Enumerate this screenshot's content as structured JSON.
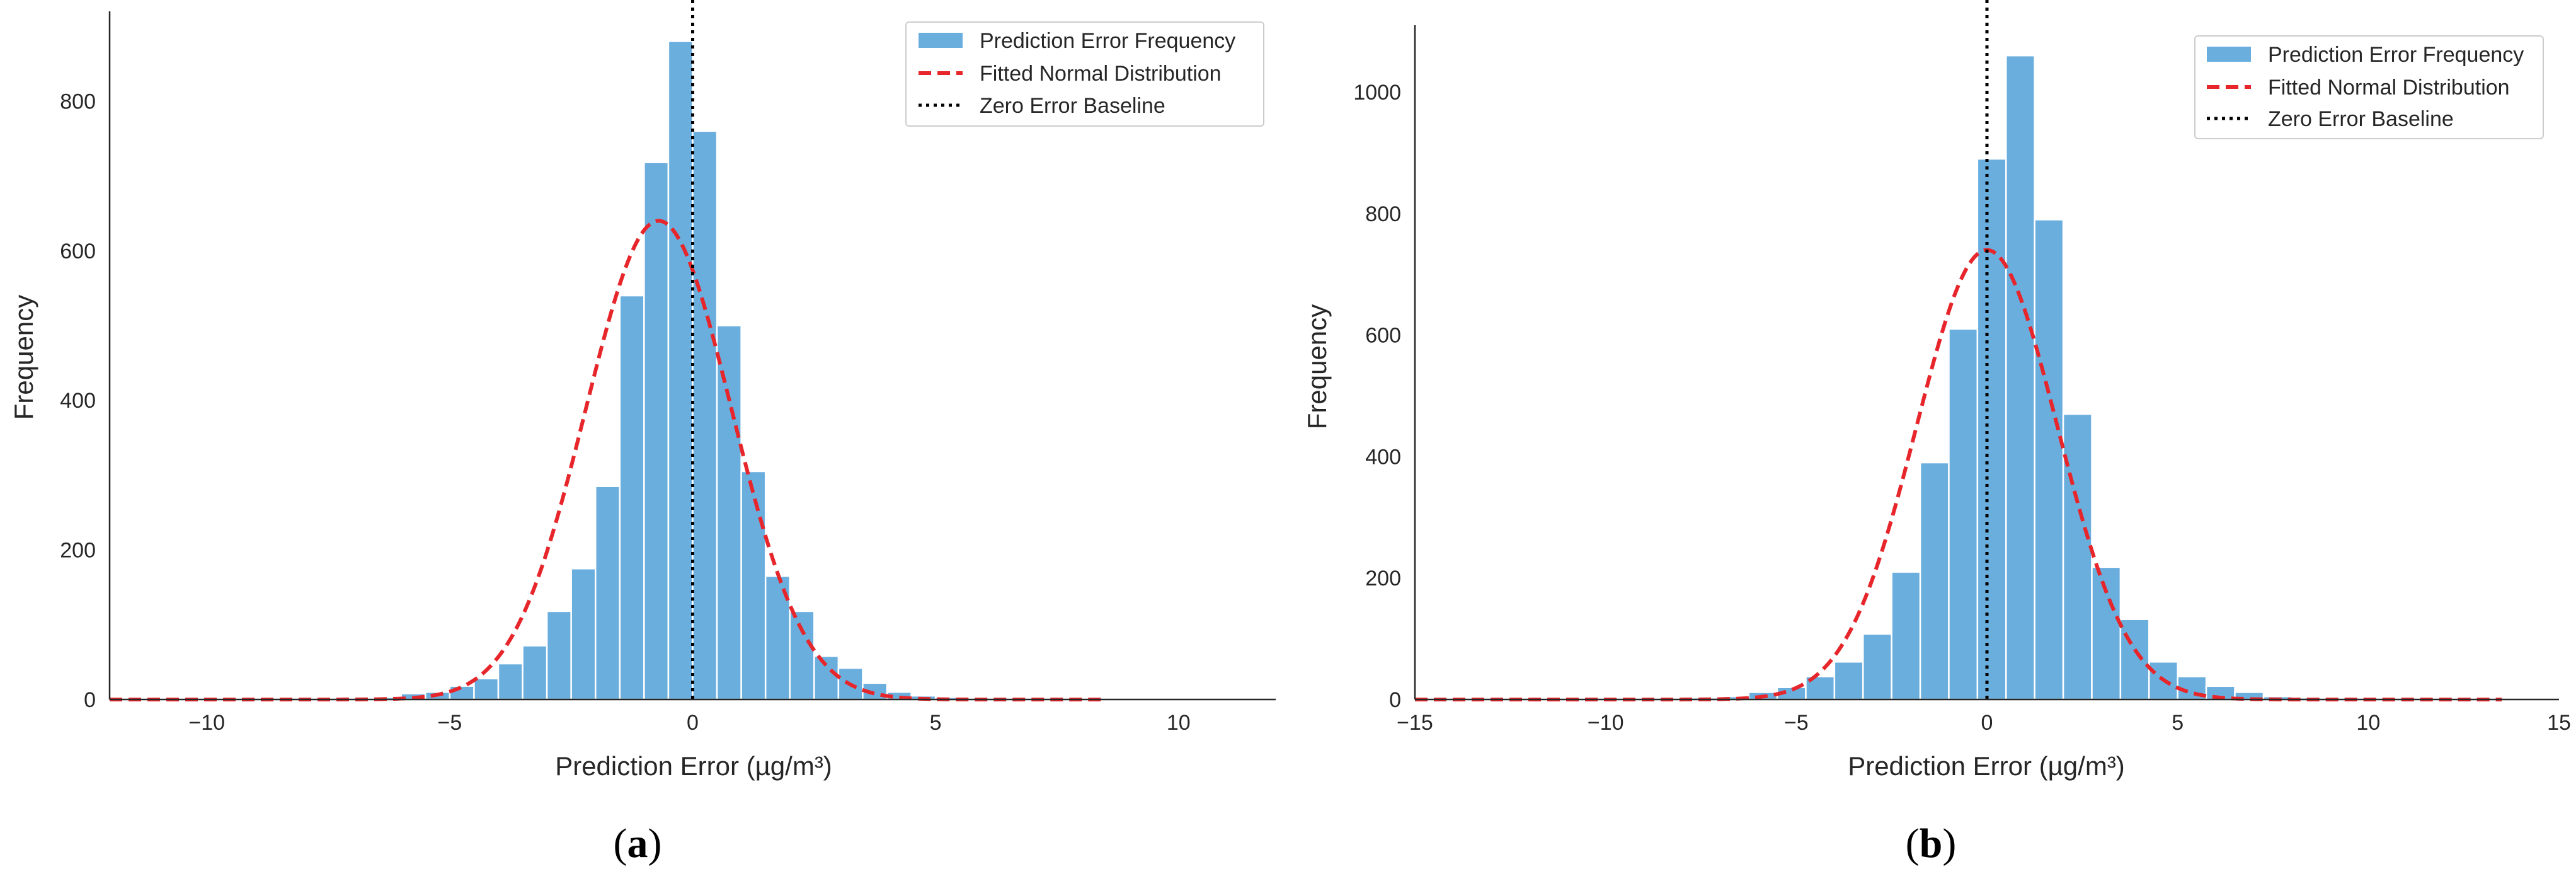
{
  "colors": {
    "bar": "#6aaede",
    "bar_edge": "#ffffff",
    "fit": "#e6262b",
    "baseline": "#000000",
    "axis": "#262626"
  },
  "legend_entries": [
    "Prediction Error Frequency",
    "Fitted Normal Distribution",
    "Zero Error Baseline"
  ],
  "chart_data": [
    {
      "type": "bar",
      "panel_label_open": "(",
      "panel_label_letter": "a",
      "panel_label_close": ")",
      "xlabel": "Prediction Error (µg/m³)",
      "ylabel": "Frequency",
      "xlim": [
        -12,
        12
      ],
      "ylim": [
        0,
        920
      ],
      "xticks": [
        -10,
        -5,
        0,
        5,
        10
      ],
      "xtick_labels": [
        "−10",
        "−5",
        "0",
        "5",
        "10"
      ],
      "yticks": [
        0,
        200,
        400,
        600,
        800
      ],
      "ytick_labels": [
        "0",
        "200",
        "400",
        "600",
        "800"
      ],
      "grid": false,
      "legend_position": "top-right",
      "bin_edges": [
        -7.0,
        -6.5,
        -6.0,
        -5.5,
        -5.0,
        -4.5,
        -4.0,
        -3.5,
        -3.0,
        -2.5,
        -2.0,
        -1.5,
        -1.0,
        -0.5,
        0.0,
        0.5,
        1.0,
        1.5,
        2.0,
        2.5,
        3.0,
        3.5,
        4.0,
        4.5,
        5.0,
        5.5,
        6.0,
        6.5,
        7.0,
        7.5,
        8.0,
        8.5
      ],
      "counts": [
        2,
        3,
        8,
        10,
        18,
        28,
        48,
        72,
        118,
        175,
        285,
        540,
        718,
        880,
        760,
        500,
        305,
        165,
        118,
        58,
        42,
        22,
        10,
        5,
        3,
        2,
        2,
        1,
        1,
        1,
        1
      ],
      "fit": {
        "mean": -0.7,
        "std": 1.5,
        "peak": 640,
        "x_range": [
          -12,
          8.5
        ]
      },
      "baseline_x": 0
    },
    {
      "type": "bar",
      "panel_label_open": "(",
      "panel_label_letter": "b",
      "panel_label_close": ")",
      "xlabel": "Prediction Error (µg/m³)",
      "ylabel": "Frequency",
      "xlim": [
        -15,
        15
      ],
      "ylim": [
        0,
        1110
      ],
      "xticks": [
        -15,
        -10,
        -5,
        0,
        5,
        10,
        15
      ],
      "xtick_labels": [
        "−15",
        "−10",
        "−5",
        "0",
        "5",
        "10",
        "15"
      ],
      "yticks": [
        0,
        200,
        400,
        600,
        800,
        1000
      ],
      "ytick_labels": [
        "0",
        "200",
        "400",
        "600",
        "800",
        "1000"
      ],
      "grid": false,
      "legend_position": "top-right",
      "bin_edges": [
        -7.75,
        -7.0,
        -6.25,
        -5.5,
        -4.75,
        -4.0,
        -3.25,
        -2.5,
        -1.75,
        -1.0,
        -0.25,
        0.5,
        1.25,
        2.0,
        2.75,
        3.5,
        4.25,
        5.0,
        5.75,
        6.5,
        7.25,
        8.0,
        8.75,
        9.5,
        10.25,
        11.0,
        11.75,
        12.5,
        13.25
      ],
      "counts": [
        3,
        5,
        12,
        20,
        38,
        62,
        108,
        210,
        390,
        610,
        890,
        1060,
        790,
        470,
        218,
        132,
        62,
        38,
        22,
        12,
        5,
        3,
        2,
        1,
        1,
        1,
        1,
        1
      ],
      "fit": {
        "mean": 0.0,
        "std": 1.85,
        "peak": 740,
        "x_range": [
          -15,
          13.5
        ]
      },
      "baseline_x": 0
    }
  ]
}
